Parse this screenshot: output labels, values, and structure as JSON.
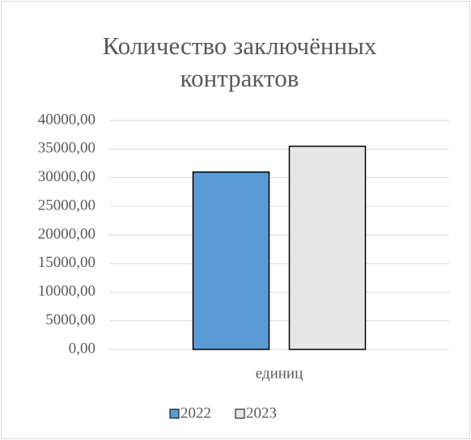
{
  "chart_data": {
    "type": "bar",
    "title": "Количество заключённых контрактов",
    "categories": [
      "единиц"
    ],
    "series": [
      {
        "name": "2022",
        "color": "#5b9bd5",
        "values": [
          31000
        ]
      },
      {
        "name": "2023",
        "color": "#e7e6e6",
        "values": [
          35500
        ]
      }
    ],
    "ylim": [
      0,
      40000
    ],
    "yticks": [
      {
        "value": 0,
        "label": "0,00"
      },
      {
        "value": 5000,
        "label": "5000,00"
      },
      {
        "value": 10000,
        "label": "10000,00"
      },
      {
        "value": 15000,
        "label": "15000,00"
      },
      {
        "value": 20000,
        "label": "20000,00"
      },
      {
        "value": 25000,
        "label": "25000,00"
      },
      {
        "value": 30000,
        "label": "30000,00"
      },
      {
        "value": 35000,
        "label": "35000,00"
      },
      {
        "value": 40000,
        "label": "40000,00"
      }
    ],
    "grid": true,
    "legend": "bottom"
  }
}
